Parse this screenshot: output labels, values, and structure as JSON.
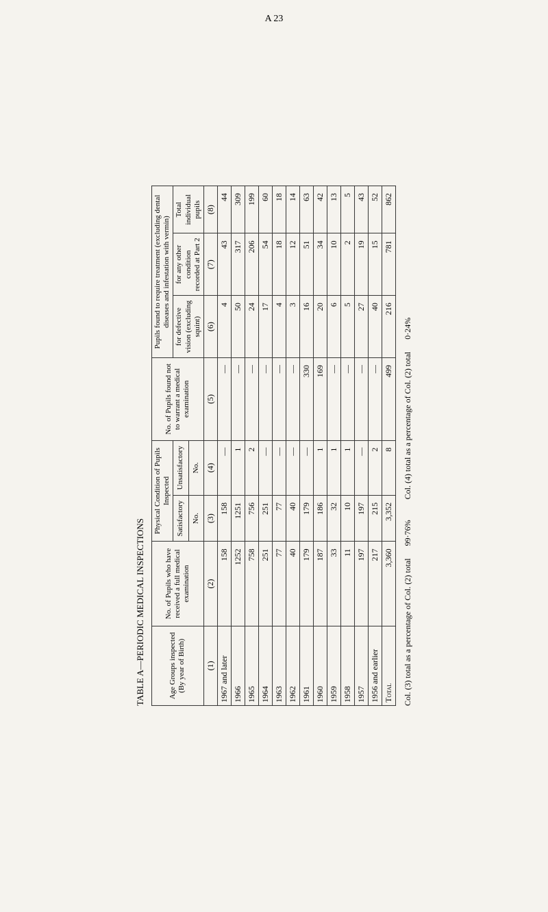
{
  "page_number": "A 23",
  "table_title": "TABLE A—PERIODIC MEDICAL INSPECTIONS",
  "headers": {
    "age_groups": "Age Groups inspected (By year of Birth)",
    "no_pupils_full": "No. of Pupils who have received a full medical examination",
    "physical_condition": "Physical Condition of Pupils Inspected",
    "satisfactory": "Satisfactory",
    "unsatisfactory": "Unsatisfactory",
    "no_label": "No.",
    "no_pupils_not_warrant": "No. of Pupils found not to warrant a medical examination",
    "pupils_found_require": "Pupils found to require treatment (excluding dental diseases and infestation with vermin)",
    "defective_vision": "for defective vision (excluding squint)",
    "other_condition": "for any other condition recorded at Part 2",
    "total_individual": "Total individual pupils",
    "col1": "(1)",
    "col2": "(2)",
    "col3": "(3)",
    "col4": "(4)",
    "col5": "(5)",
    "col6": "(6)",
    "col7": "(7)",
    "col8": "(8)"
  },
  "rows": [
    {
      "age": "1967 and later",
      "c2": "158",
      "c3": "158",
      "c4": "—",
      "c5": "—",
      "c6": "4",
      "c7": "43",
      "c8": "44"
    },
    {
      "age": "1966",
      "c2": "1252",
      "c3": "1251",
      "c4": "1",
      "c5": "—",
      "c6": "50",
      "c7": "317",
      "c8": "309"
    },
    {
      "age": "1965",
      "c2": "758",
      "c3": "756",
      "c4": "2",
      "c5": "—",
      "c6": "24",
      "c7": "206",
      "c8": "199"
    },
    {
      "age": "1964",
      "c2": "251",
      "c3": "251",
      "c4": "—",
      "c5": "—",
      "c6": "17",
      "c7": "54",
      "c8": "60"
    },
    {
      "age": "1963",
      "c2": "77",
      "c3": "77",
      "c4": "—",
      "c5": "—",
      "c6": "4",
      "c7": "18",
      "c8": "18"
    },
    {
      "age": "1962",
      "c2": "40",
      "c3": "40",
      "c4": "—",
      "c5": "—",
      "c6": "3",
      "c7": "12",
      "c8": "14"
    },
    {
      "age": "1961",
      "c2": "179",
      "c3": "179",
      "c4": "—",
      "c5": "330",
      "c6": "16",
      "c7": "51",
      "c8": "63"
    },
    {
      "age": "1960",
      "c2": "187",
      "c3": "186",
      "c4": "1",
      "c5": "169",
      "c6": "20",
      "c7": "34",
      "c8": "42"
    },
    {
      "age": "1959",
      "c2": "33",
      "c3": "32",
      "c4": "1",
      "c5": "—",
      "c6": "6",
      "c7": "10",
      "c8": "13"
    },
    {
      "age": "1958",
      "c2": "11",
      "c3": "10",
      "c4": "1",
      "c5": "—",
      "c6": "5",
      "c7": "2",
      "c8": "5"
    },
    {
      "age": "1957",
      "c2": "197",
      "c3": "197",
      "c4": "—",
      "c5": "—",
      "c6": "27",
      "c7": "19",
      "c8": "43"
    },
    {
      "age": "1956 and earlier",
      "c2": "217",
      "c3": "215",
      "c4": "2",
      "c5": "—",
      "c6": "40",
      "c7": "15",
      "c8": "52"
    }
  ],
  "totals": {
    "label": "Total",
    "c2": "3,360",
    "c3": "3,352",
    "c4": "8",
    "c5": "499",
    "c6": "216",
    "c7": "781",
    "c8": "862"
  },
  "footnotes": {
    "line1_left": "Col. (3) total as a percentage of Col. (2) total",
    "line1_right": "99·76%",
    "line2_left": "Col. (4) total as a percentage of Col. (2) total",
    "line2_right": "0·24%"
  }
}
